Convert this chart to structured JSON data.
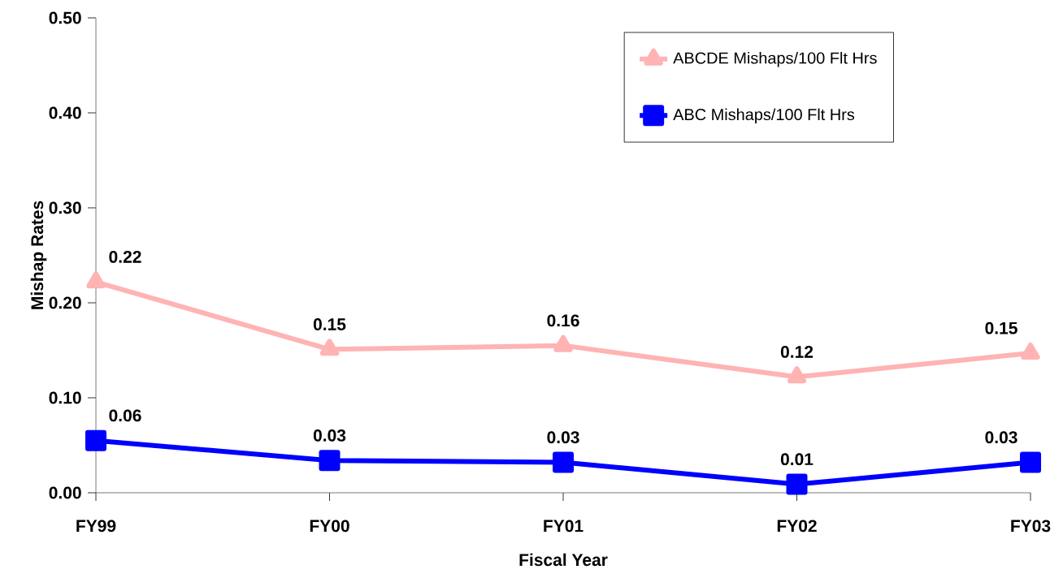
{
  "chart_data": {
    "type": "line",
    "xlabel": "Fiscal Year",
    "ylabel": "Mishap Rates",
    "categories": [
      "FY99",
      "FY00",
      "FY01",
      "FY02",
      "FY03"
    ],
    "series": [
      {
        "name": "ABCDE Mishaps/100 Flt Hrs",
        "color": "#ffb3b3",
        "marker": "triangle",
        "values": [
          0.222,
          0.151,
          0.155,
          0.122,
          0.147
        ],
        "value_labels": [
          "0.22",
          "0.15",
          "0.16",
          "0.12",
          "0.15"
        ]
      },
      {
        "name": "ABC Mishaps/100 Flt Hrs",
        "color": "#0000ff",
        "marker": "square",
        "values": [
          0.055,
          0.034,
          0.032,
          0.009,
          0.032
        ],
        "value_labels": [
          "0.06",
          "0.03",
          "0.03",
          "0.01",
          "0.03"
        ]
      }
    ],
    "ylim": [
      0,
      0.5
    ],
    "yticks": [
      {
        "value": 0,
        "label": "0.00"
      },
      {
        "value": 0.1,
        "label": "0.10"
      },
      {
        "value": 0.2,
        "label": "0.20"
      },
      {
        "value": 0.3,
        "label": "0.30"
      },
      {
        "value": 0.4,
        "label": "0.40"
      },
      {
        "value": 0.5,
        "label": "0.50"
      }
    ],
    "grid": false,
    "legend": "top right"
  }
}
